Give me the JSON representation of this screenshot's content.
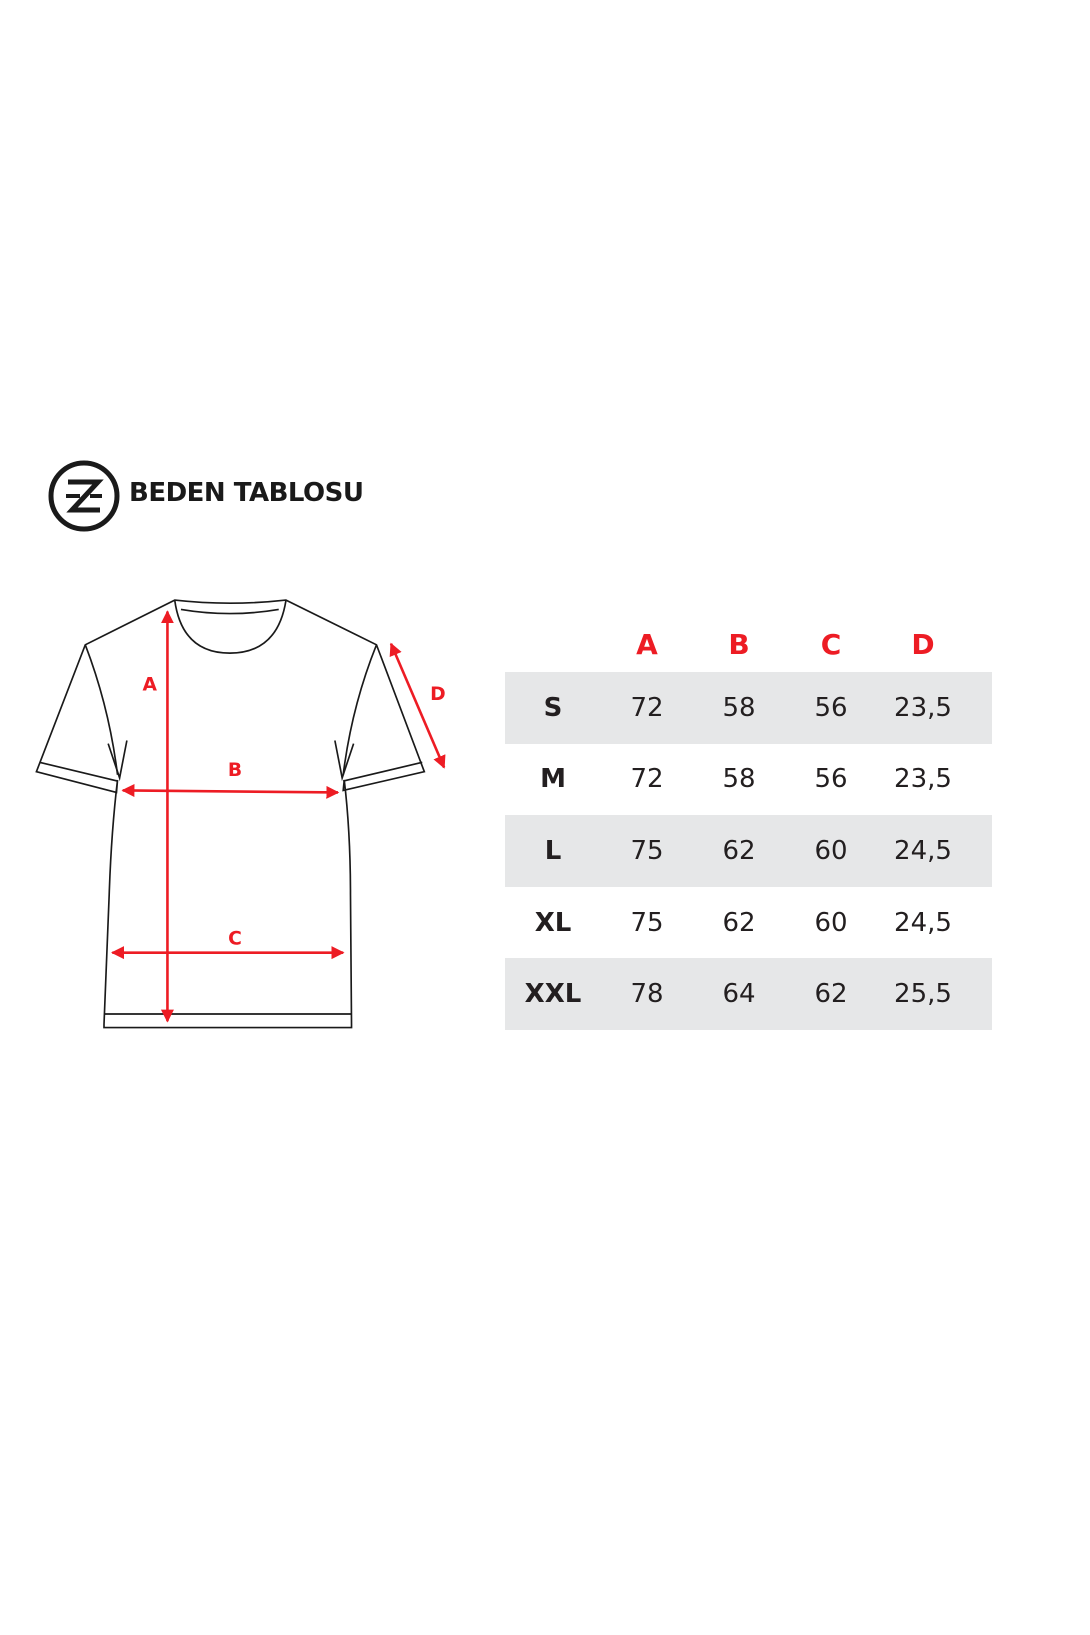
{
  "header": {
    "title": "BEDEN TABLOSU",
    "logo": "Z-circle-logo"
  },
  "diagram": {
    "labels": {
      "a": "A",
      "b": "B",
      "c": "C",
      "d": "D"
    },
    "accent": "#ed1c24"
  },
  "table": {
    "columns": [
      "",
      "A",
      "B",
      "C",
      "D"
    ],
    "rows": [
      {
        "size": "S",
        "a": "72",
        "b": "58",
        "c": "56",
        "d": "23,5"
      },
      {
        "size": "M",
        "a": "72",
        "b": "58",
        "c": "56",
        "d": "23,5"
      },
      {
        "size": "L",
        "a": "75",
        "b": "62",
        "c": "60",
        "d": "24,5"
      },
      {
        "size": "XL",
        "a": "75",
        "b": "62",
        "c": "60",
        "d": "24,5"
      },
      {
        "size": "XXL",
        "a": "78",
        "b": "64",
        "c": "62",
        "d": "25,5"
      }
    ],
    "shade_color": "#e6e7e8"
  }
}
